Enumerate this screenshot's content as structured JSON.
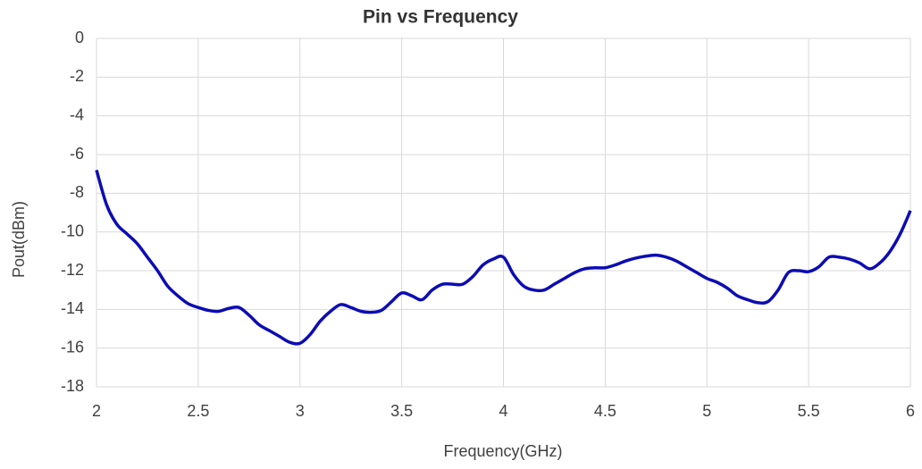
{
  "chart_data": {
    "type": "line",
    "title": "Pin vs Frequency",
    "x_label": "Frequency(GHz)",
    "y_label": "Pout(dBm)",
    "x": [
      2.0,
      2.05,
      2.1,
      2.15,
      2.2,
      2.25,
      2.3,
      2.35,
      2.4,
      2.45,
      2.5,
      2.55,
      2.6,
      2.65,
      2.7,
      2.75,
      2.8,
      2.85,
      2.9,
      2.95,
      3.0,
      3.05,
      3.1,
      3.15,
      3.2,
      3.25,
      3.3,
      3.35,
      3.4,
      3.45,
      3.5,
      3.55,
      3.6,
      3.65,
      3.7,
      3.75,
      3.8,
      3.85,
      3.9,
      3.95,
      4.0,
      4.05,
      4.1,
      4.15,
      4.2,
      4.25,
      4.3,
      4.35,
      4.4,
      4.45,
      4.5,
      4.55,
      4.6,
      4.65,
      4.7,
      4.75,
      4.8,
      4.85,
      4.9,
      4.95,
      5.0,
      5.05,
      5.1,
      5.15,
      5.2,
      5.25,
      5.3,
      5.35,
      5.4,
      5.45,
      5.5,
      5.55,
      5.6,
      5.65,
      5.7,
      5.75,
      5.8,
      5.85,
      5.9,
      5.95,
      6.0
    ],
    "series": [
      {
        "name": "Pout",
        "color": "#0c0cb4",
        "values": [
          -6.8,
          -8.6,
          -9.6,
          -10.1,
          -10.6,
          -11.3,
          -12.0,
          -12.8,
          -13.3,
          -13.7,
          -13.9,
          -14.05,
          -14.1,
          -13.95,
          -13.9,
          -14.3,
          -14.8,
          -15.1,
          -15.4,
          -15.7,
          -15.75,
          -15.3,
          -14.6,
          -14.1,
          -13.75,
          -13.9,
          -14.1,
          -14.15,
          -14.05,
          -13.6,
          -13.15,
          -13.3,
          -13.5,
          -13.0,
          -12.7,
          -12.7,
          -12.7,
          -12.3,
          -11.7,
          -11.4,
          -11.3,
          -12.2,
          -12.8,
          -13.0,
          -13.0,
          -12.7,
          -12.4,
          -12.1,
          -11.9,
          -11.85,
          -11.85,
          -11.7,
          -11.5,
          -11.35,
          -11.25,
          -11.2,
          -11.3,
          -11.5,
          -11.8,
          -12.1,
          -12.4,
          -12.6,
          -12.9,
          -13.3,
          -13.5,
          -13.65,
          -13.6,
          -13.0,
          -12.1,
          -12.0,
          -12.05,
          -11.8,
          -11.3,
          -11.3,
          -11.4,
          -11.6,
          -11.9,
          -11.6,
          -11.0,
          -10.1,
          -8.9
        ]
      }
    ],
    "xlim": [
      2,
      6
    ],
    "xticks": [
      2,
      2.5,
      3,
      3.5,
      4,
      4.5,
      5,
      5.5,
      6
    ],
    "ylim": [
      -18,
      0
    ],
    "yticks": [
      0,
      -2,
      -4,
      -6,
      -8,
      -10,
      -12,
      -14,
      -16,
      -18
    ],
    "grid": true
  }
}
